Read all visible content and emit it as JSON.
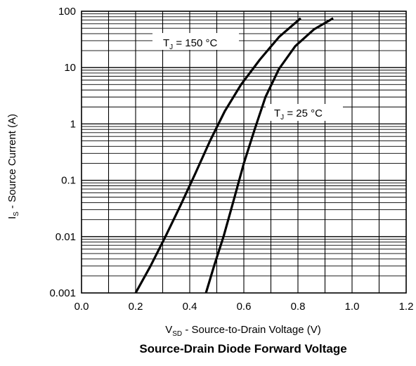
{
  "chart_data": {
    "type": "line",
    "title": "Source-Drain Diode Forward Voltage",
    "xlabel": {
      "main": "V",
      "sub": "SD",
      "rest": " - Source-to-Drain Voltage (V)"
    },
    "ylabel": {
      "main": "I",
      "sub": "S",
      "rest": " - Source Current (A)"
    },
    "xlim": [
      0.0,
      1.2
    ],
    "ylim": [
      0.001,
      100
    ],
    "yscale": "log",
    "grid": true,
    "x_ticks": [
      0.0,
      0.2,
      0.4,
      0.6,
      0.8,
      1.0,
      1.2
    ],
    "x_tick_labels": [
      "0.0",
      "0.2",
      "0.4",
      "0.6",
      "0.8",
      "1.0",
      "1.2"
    ],
    "y_ticks": [
      0.001,
      0.01,
      0.1,
      1,
      10,
      100
    ],
    "y_tick_labels": [
      "0.001",
      "0.01",
      "0.1",
      "1",
      "10",
      "100"
    ],
    "series": [
      {
        "name": {
          "main": "T",
          "sub": "J",
          "rest": " = 150 °C"
        },
        "x": [
          0.2,
          0.255,
          0.31,
          0.365,
          0.42,
          0.475,
          0.53,
          0.59,
          0.66,
          0.73,
          0.81
        ],
        "y": [
          0.001,
          0.003,
          0.01,
          0.035,
          0.13,
          0.5,
          1.7,
          5,
          14,
          35,
          75
        ]
      },
      {
        "name": {
          "main": "T",
          "sub": "J",
          "rest": " = 25 °C"
        },
        "x": [
          0.46,
          0.49,
          0.525,
          0.56,
          0.6,
          0.64,
          0.68,
          0.73,
          0.79,
          0.86,
          0.93
        ],
        "y": [
          0.001,
          0.003,
          0.01,
          0.04,
          0.2,
          0.8,
          3,
          9.5,
          24,
          48,
          75
        ]
      }
    ]
  }
}
